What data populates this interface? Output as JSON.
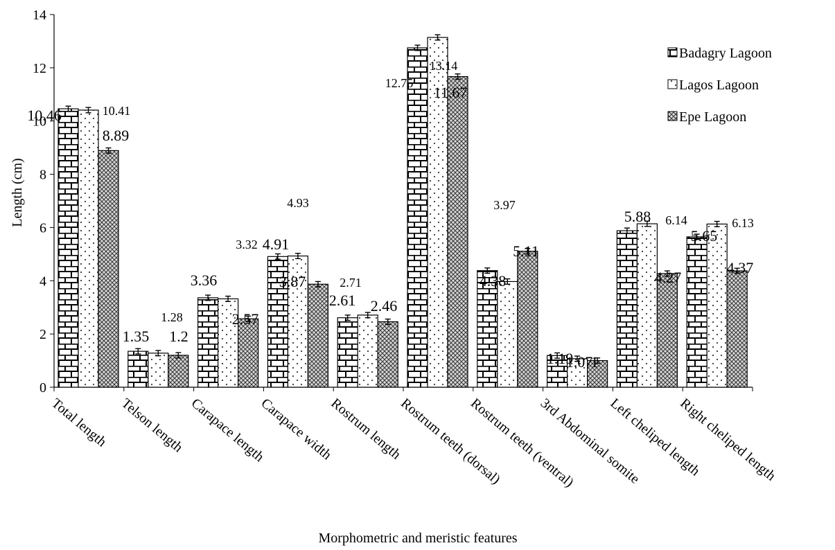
{
  "chart_data": {
    "type": "bar",
    "title": "",
    "xlabel": "Morphometric and meristic features",
    "ylabel": "Length (cm)",
    "ylim": [
      0,
      14
    ],
    "yticks": [
      0,
      2,
      4,
      6,
      8,
      10,
      12,
      14
    ],
    "grid": false,
    "legend_position": "top-right",
    "categories": [
      "Total length",
      "Telson length",
      "Carapace length",
      "Carapace width",
      "Rostrum length",
      "Rostrum teeth (dorsal)",
      "Rostrum teeth (ventral)",
      "3rd Abdominal somite",
      "Left cheliped length",
      "Right cheliped length"
    ],
    "series": [
      {
        "name": "Badagry Lagoon",
        "pattern": "brick",
        "values": [
          10.46,
          1.35,
          3.36,
          4.91,
          2.61,
          12.75,
          4.38,
          1.19,
          5.88,
          5.65
        ],
        "value_labels": [
          "10.46",
          "1.35",
          "3.36",
          "4.91",
          "2.61",
          "12.75",
          "4.38",
          "1.19",
          "5.88",
          "5.65"
        ]
      },
      {
        "name": "Lagos Lagoon",
        "pattern": "dots",
        "values": [
          10.41,
          1.28,
          3.32,
          4.93,
          2.71,
          13.14,
          3.97,
          1.07,
          6.14,
          6.13
        ],
        "value_labels": [
          "10.41",
          "1.28",
          "3.32",
          "4.93",
          "2.71",
          "13.14",
          "3.97",
          "1.07",
          "6.14",
          "6.13"
        ]
      },
      {
        "name": "Epe Lagoon",
        "pattern": "crosshatch",
        "values": [
          8.89,
          1.2,
          2.57,
          3.87,
          2.46,
          11.67,
          5.11,
          1.0,
          4.27,
          4.37
        ],
        "value_labels": [
          "8.89",
          "1.2",
          "2.57",
          "3.87",
          "2.46",
          "11.67",
          "5.11",
          "1",
          "4.27",
          "4.37"
        ]
      }
    ],
    "error_bar": 0.1
  }
}
